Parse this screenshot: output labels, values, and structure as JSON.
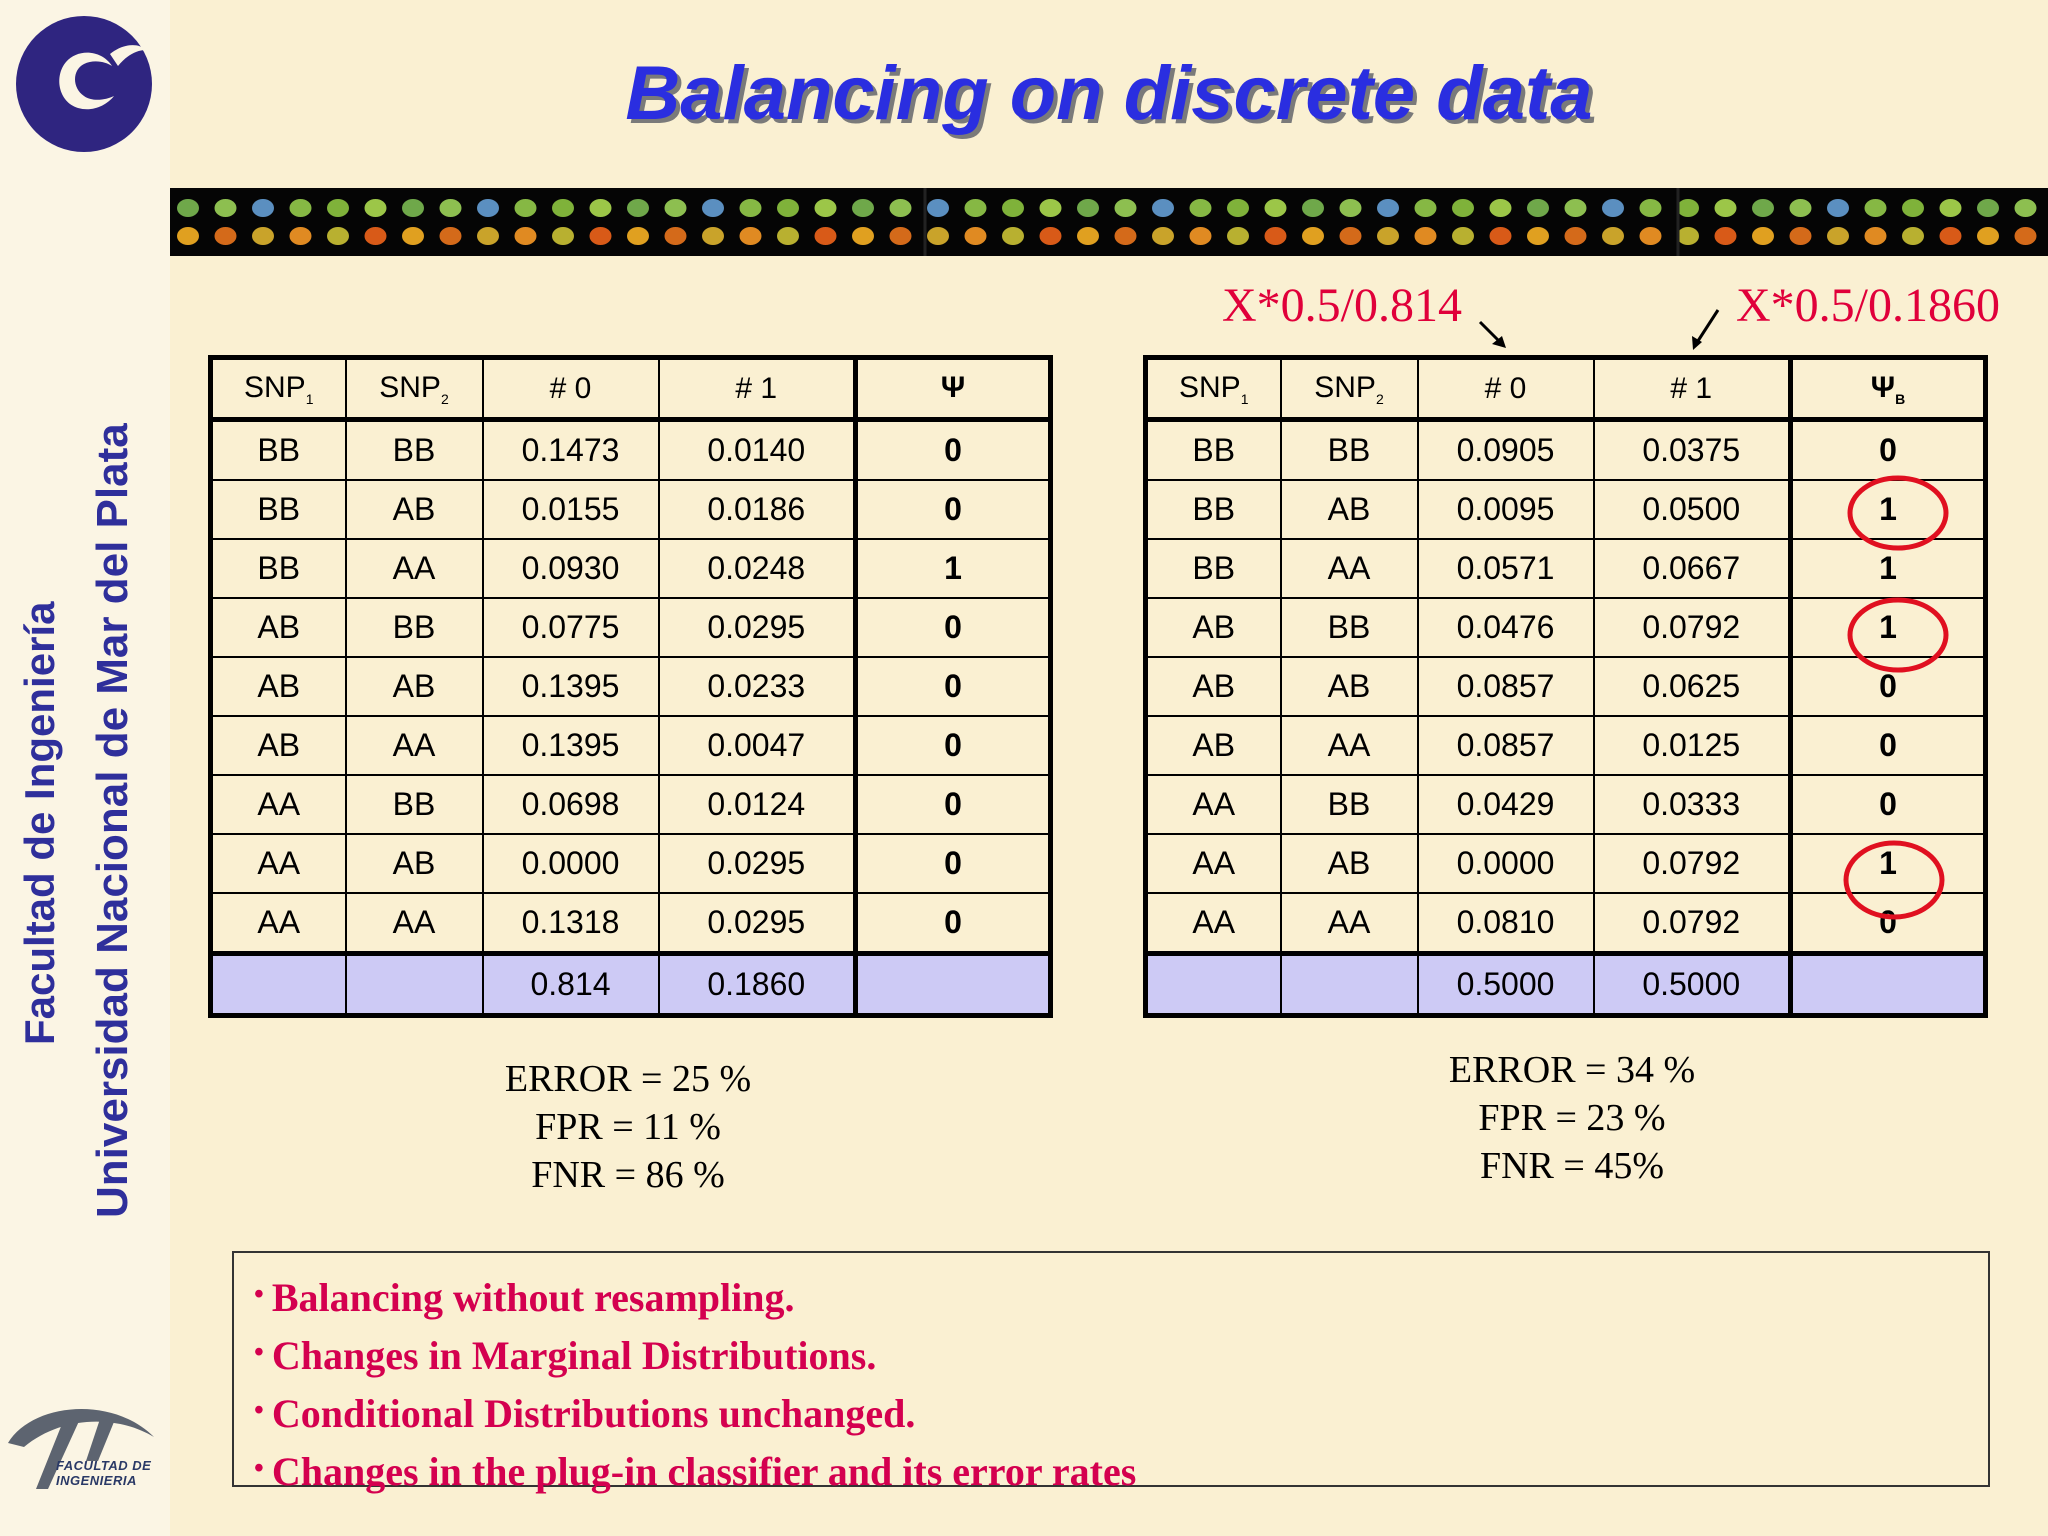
{
  "slide": {
    "title": "Balancing on discrete data",
    "sidebar": {
      "line1": "Facultad de Ingeniería",
      "line2": "Universidad Nacional de Mar del Plata",
      "logo_bottom_line1": "FACULTAD DE",
      "logo_bottom_line2": "INGENIERIA"
    },
    "annotations": {
      "left": "X*0.5/0.814",
      "right": "X*0.5/0.1860"
    },
    "colors": {
      "title": "#2a2ee0",
      "accent_red": "#e0003a",
      "bullet_text": "#d4004f",
      "total_row": "#cdcaf5",
      "background": "#faf0d2"
    }
  },
  "table_left": {
    "headers": {
      "snp1": "SNP",
      "snp1_sub": "1",
      "snp2": "SNP",
      "snp2_sub": "2",
      "count0": "# 0",
      "count1": "# 1",
      "psi": "Ψ",
      "psi_sub": ""
    },
    "rows": [
      [
        "BB",
        "BB",
        "0.1473",
        "0.0140",
        "0"
      ],
      [
        "BB",
        "AB",
        "0.0155",
        "0.0186",
        "0"
      ],
      [
        "BB",
        "AA",
        "0.0930",
        "0.0248",
        "1"
      ],
      [
        "AB",
        "BB",
        "0.0775",
        "0.0295",
        "0"
      ],
      [
        "AB",
        "AB",
        "0.1395",
        "0.0233",
        "0"
      ],
      [
        "AB",
        "AA",
        "0.1395",
        "0.0047",
        "0"
      ],
      [
        "AA",
        "BB",
        "0.0698",
        "0.0124",
        "0"
      ],
      [
        "AA",
        "AB",
        "0.0000",
        "0.0295",
        "0"
      ],
      [
        "AA",
        "AA",
        "0.1318",
        "0.0295",
        "0"
      ]
    ],
    "totals": [
      "",
      "",
      "0.814",
      "0.1860",
      ""
    ],
    "metrics": [
      "ERROR = 25 %",
      "FPR = 11 %",
      "FNR = 86 %"
    ]
  },
  "table_right": {
    "headers": {
      "snp1": "SNP",
      "snp1_sub": "1",
      "snp2": "SNP",
      "snp2_sub": "2",
      "count0": "# 0",
      "count1": "# 1",
      "psi": "Ψ",
      "psi_sub": "B"
    },
    "rows": [
      [
        "BB",
        "BB",
        "0.0905",
        "0.0375",
        "0"
      ],
      [
        "BB",
        "AB",
        "0.0095",
        "0.0500",
        "1"
      ],
      [
        "BB",
        "AA",
        "0.0571",
        "0.0667",
        "1"
      ],
      [
        "AB",
        "BB",
        "0.0476",
        "0.0792",
        "1"
      ],
      [
        "AB",
        "AB",
        "0.0857",
        "0.0625",
        "0"
      ],
      [
        "AB",
        "AA",
        "0.0857",
        "0.0125",
        "0"
      ],
      [
        "AA",
        "BB",
        "0.0429",
        "0.0333",
        "0"
      ],
      [
        "AA",
        "AB",
        "0.0000",
        "0.0792",
        "1"
      ],
      [
        "AA",
        "AA",
        "0.0810",
        "0.0792",
        "0"
      ]
    ],
    "totals": [
      "",
      "",
      "0.5000",
      "0.5000",
      ""
    ],
    "metrics": [
      "ERROR = 34 %",
      "FPR = 23 %",
      "FNR = 45%"
    ]
  },
  "notes": [
    "Balancing without resampling.",
    "Changes in Marginal Distributions.",
    "Conditional Distributions unchanged.",
    "Changes in the plug-in  classifier and its error rates"
  ]
}
